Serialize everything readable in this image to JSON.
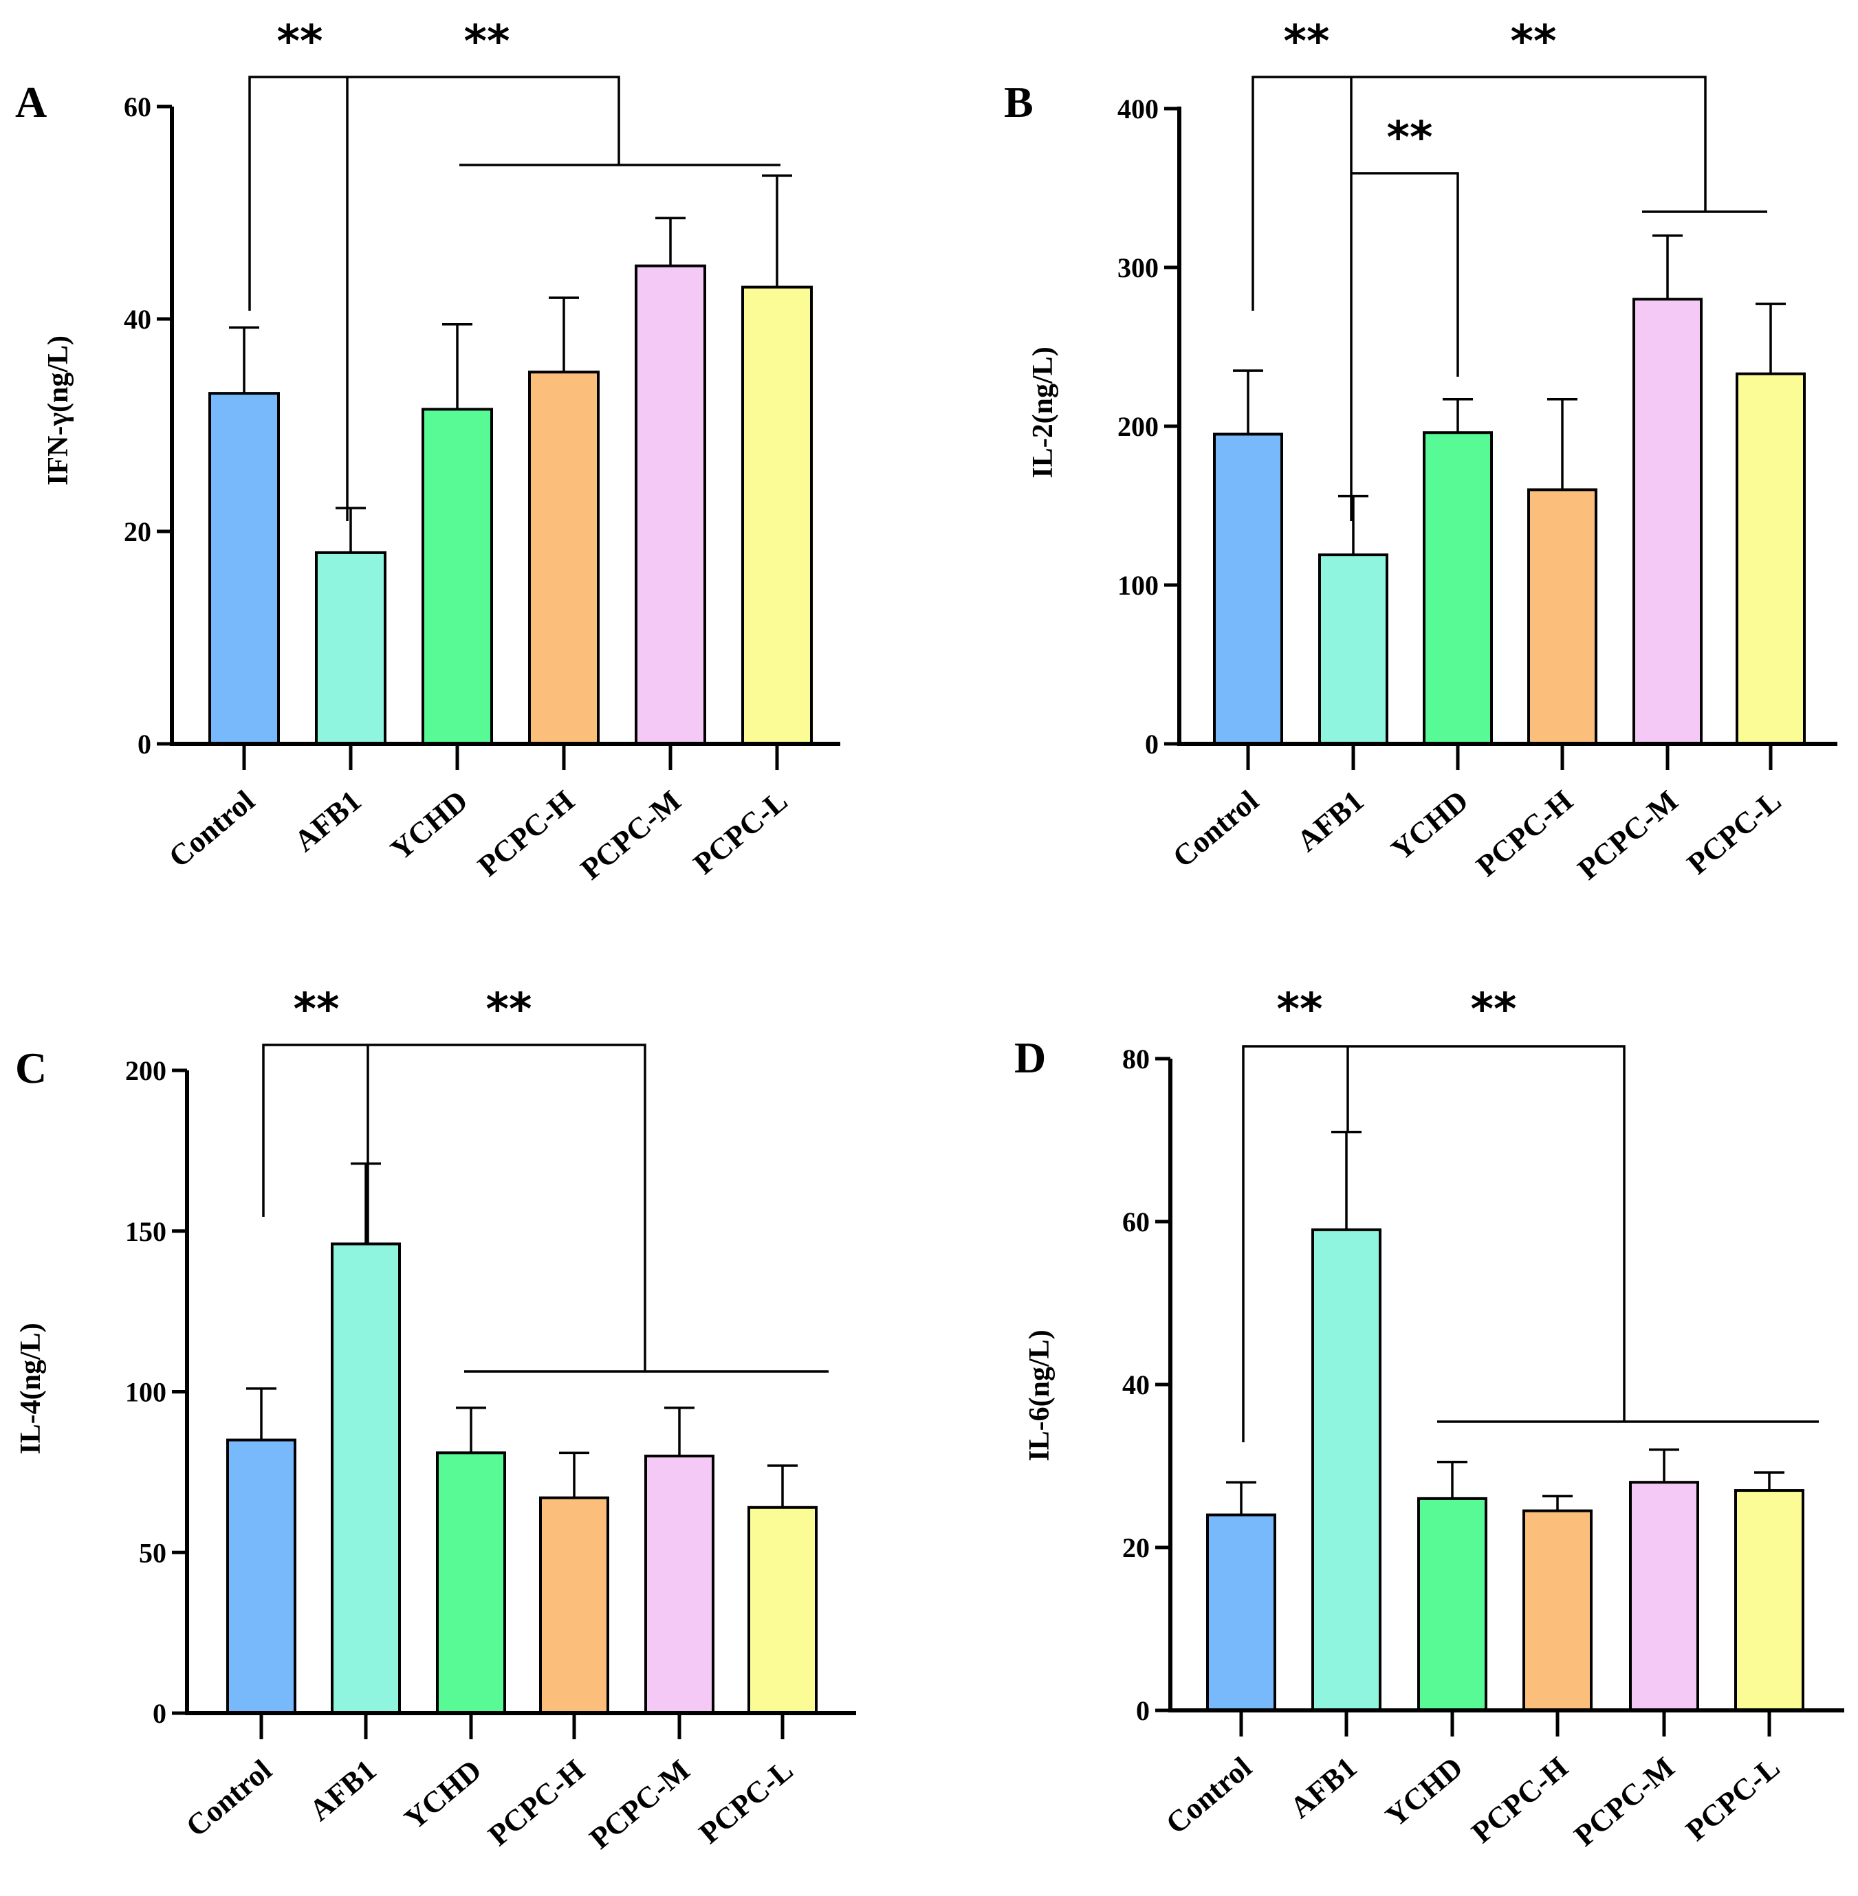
{
  "chart_data": [
    {
      "panel": "A",
      "type": "bar",
      "ylabel": "IFN-γ(ng/L)",
      "ylim": [
        0,
        60
      ],
      "yticks": [
        0,
        20,
        40,
        60
      ],
      "categories": [
        "Control",
        "AFB1",
        "YCHD",
        "PCPC-H",
        "PCPC-M",
        "PCPC-L"
      ],
      "values": [
        33,
        18,
        31.5,
        35,
        45,
        43
      ],
      "errors": [
        6.2,
        4.2,
        8,
        7,
        4.5,
        10.5
      ],
      "colors": [
        "#78B9FB",
        "#8FF5DE",
        "#57FA94",
        "#FBBF7B",
        "#F5C9F5",
        "#FCFC96"
      ],
      "significance": [
        "**",
        "**"
      ]
    },
    {
      "panel": "B",
      "type": "bar",
      "ylabel": "IL-2(ng/L)",
      "ylim": [
        0,
        400
      ],
      "yticks": [
        0,
        100,
        200,
        300,
        400
      ],
      "categories": [
        "Control",
        "AFB1",
        "YCHD",
        "PCPC-H",
        "PCPC-M",
        "PCPC-L"
      ],
      "values": [
        195,
        119,
        196,
        160,
        280,
        233
      ],
      "errors": [
        40,
        37,
        21,
        57,
        40,
        44
      ],
      "colors": [
        "#78B9FB",
        "#8FF5DE",
        "#57FA94",
        "#FBBF7B",
        "#F5C9F5",
        "#FCFC96"
      ],
      "significance": [
        "**",
        "**",
        "**"
      ]
    },
    {
      "panel": "C",
      "type": "bar",
      "ylabel": "IL-4(ng/L)",
      "ylim": [
        0,
        200
      ],
      "yticks": [
        0,
        50,
        100,
        150,
        200
      ],
      "categories": [
        "Control",
        "AFB1",
        "YCHD",
        "PCPC-H",
        "PCPC-M",
        "PCPC-L"
      ],
      "values": [
        85,
        146,
        81,
        67,
        80,
        64
      ],
      "errors": [
        16,
        25,
        14,
        14,
        15,
        13
      ],
      "colors": [
        "#78B9FB",
        "#8FF5DE",
        "#57FA94",
        "#FBBF7B",
        "#F5C9F5",
        "#FCFC96"
      ],
      "significance": [
        "**",
        "**"
      ]
    },
    {
      "panel": "D",
      "type": "bar",
      "ylabel": "IL-6(ng/L)",
      "ylim": [
        0,
        80
      ],
      "yticks": [
        0,
        20,
        40,
        60,
        80
      ],
      "categories": [
        "Control",
        "AFB1",
        "YCHD",
        "PCPC-H",
        "PCPC-M",
        "PCPC-L"
      ],
      "values": [
        24,
        59,
        26,
        24.5,
        28,
        27
      ],
      "errors": [
        4,
        12,
        4.5,
        1.8,
        4,
        2.2
      ],
      "colors": [
        "#78B9FB",
        "#8FF5DE",
        "#57FA94",
        "#FBBF7B",
        "#F5C9F5",
        "#FCFC96"
      ],
      "significance": [
        "**",
        "**"
      ]
    }
  ]
}
